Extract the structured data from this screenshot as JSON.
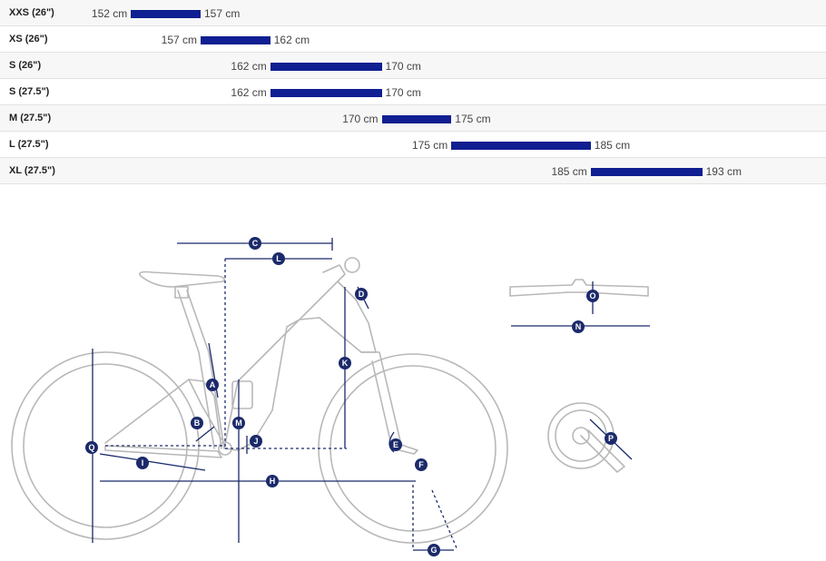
{
  "size_table": {
    "rows": [
      {
        "size": "XXS (26\")",
        "min": "152 cm",
        "max": "157 cm",
        "min_cm": 152,
        "max_cm": 157
      },
      {
        "size": "XS (26\")",
        "min": "157 cm",
        "max": "162 cm",
        "min_cm": 157,
        "max_cm": 162
      },
      {
        "size": "S (26\")",
        "min": "162 cm",
        "max": "170 cm",
        "min_cm": 162,
        "max_cm": 170
      },
      {
        "size": "S (27.5\")",
        "min": "162 cm",
        "max": "170 cm",
        "min_cm": 162,
        "max_cm": 170
      },
      {
        "size": "M (27.5\")",
        "min": "170 cm",
        "max": "175 cm",
        "min_cm": 170,
        "max_cm": 175
      },
      {
        "size": "L (27.5\")",
        "min": "175 cm",
        "max": "185 cm",
        "min_cm": 175,
        "max_cm": 185
      },
      {
        "size": "XL (27.5\")",
        "min": "185 cm",
        "max": "193 cm",
        "min_cm": 185,
        "max_cm": 193
      }
    ]
  },
  "colors": {
    "bar": "#101f91",
    "marker": "#1b2a6b",
    "line_art": "#b8b8b8"
  },
  "geometry_diagram": {
    "bike_labels": [
      "A",
      "B",
      "C",
      "D",
      "E",
      "F",
      "G",
      "H",
      "I",
      "J",
      "K",
      "L",
      "M",
      "Q"
    ],
    "handlebar_labels": [
      "O",
      "N"
    ],
    "crank_labels": [
      "P"
    ]
  }
}
